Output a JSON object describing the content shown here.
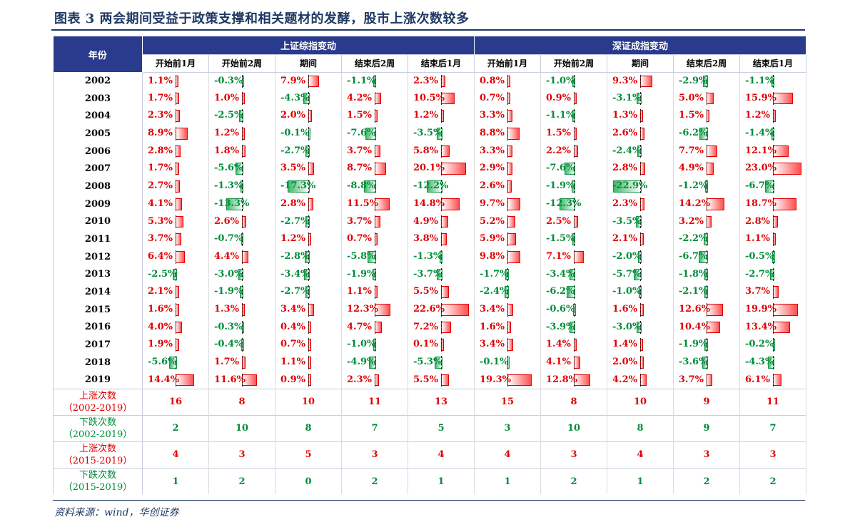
{
  "title": "图表 3   两会期间受益于政策支撑和相关题材的发酵，股市上涨次数较多",
  "header": {
    "year_label": "年份",
    "group1": "上证综指变动",
    "group2": "深证成指变动",
    "columns": [
      "开始前1月",
      "开始前2周",
      "期间",
      "结束后2周",
      "结束后1月",
      "开始前1月",
      "开始前2周",
      "期间",
      "结束后2周",
      "结束后1月"
    ]
  },
  "colors": {
    "up": "#e00000",
    "down": "#008c3a",
    "header_bg": "#2a3b8e"
  },
  "rows": [
    {
      "year": "2002",
      "values": [
        "1.1%",
        "-0.3%",
        "7.9%",
        "-1.1%",
        "2.3%",
        "0.8%",
        "-1.0%",
        "9.3%",
        "-2.9%",
        "-1.1%"
      ]
    },
    {
      "year": "2003",
      "values": [
        "1.7%",
        "1.0%",
        "-4.3%",
        "4.2%",
        "10.5%",
        "0.7%",
        "0.9%",
        "-3.1%",
        "5.0%",
        "15.9%"
      ]
    },
    {
      "year": "2004",
      "values": [
        "2.3%",
        "-2.5%",
        "2.0%",
        "1.5%",
        "1.2%",
        "3.3%",
        "-1.1%",
        "1.3%",
        "1.5%",
        "1.2%"
      ]
    },
    {
      "year": "2005",
      "values": [
        "8.9%",
        "1.2%",
        "-0.1%",
        "-7.6%",
        "-3.5%",
        "8.8%",
        "1.5%",
        "2.6%",
        "-6.2%",
        "-1.4%"
      ]
    },
    {
      "year": "2006",
      "values": [
        "2.8%",
        "1.8%",
        "-2.7%",
        "3.7%",
        "5.8%",
        "3.3%",
        "2.2%",
        "-2.4%",
        "7.7%",
        "12.1%"
      ]
    },
    {
      "year": "2007",
      "values": [
        "1.7%",
        "-5.6%",
        "3.5%",
        "8.7%",
        "20.1%",
        "2.9%",
        "-7.6%",
        "2.8%",
        "4.9%",
        "23.0%"
      ]
    },
    {
      "year": "2008",
      "values": [
        "2.7%",
        "-1.3%",
        "-17.3%",
        "-8.8%",
        "-12.2%",
        "2.6%",
        "-1.9%",
        "-22.9%",
        "-1.2%",
        "-6.7%"
      ]
    },
    {
      "year": "2009",
      "values": [
        "4.1%",
        "-13.3%",
        "2.8%",
        "11.5%",
        "14.8%",
        "9.7%",
        "-12.3%",
        "2.3%",
        "14.2%",
        "18.7%"
      ]
    },
    {
      "year": "2010",
      "values": [
        "5.3%",
        "2.6%",
        "-2.7%",
        "3.7%",
        "4.9%",
        "5.2%",
        "2.5%",
        "-3.5%",
        "3.2%",
        "2.8%"
      ]
    },
    {
      "year": "2011",
      "values": [
        "3.7%",
        "-0.7%",
        "1.2%",
        "0.7%",
        "3.8%",
        "5.9%",
        "-1.5%",
        "2.1%",
        "-2.2%",
        "1.1%"
      ]
    },
    {
      "year": "2012",
      "values": [
        "6.4%",
        "4.4%",
        "-2.8%",
        "-5.8%",
        "-1.3%",
        "9.8%",
        "7.1%",
        "-2.0%",
        "-6.7%",
        "-0.5%"
      ]
    },
    {
      "year": "2013",
      "values": [
        "-2.5%",
        "-3.0%",
        "-3.4%",
        "-1.9%",
        "-3.7%",
        "-1.7%",
        "-3.4%",
        "-5.7%",
        "-1.8%",
        "-2.7%"
      ]
    },
    {
      "year": "2014",
      "values": [
        "2.1%",
        "-1.9%",
        "-2.7%",
        "1.1%",
        "5.5%",
        "-2.4%",
        "-6.2%",
        "-1.0%",
        "-2.1%",
        "3.7%"
      ]
    },
    {
      "year": "2015",
      "values": [
        "1.6%",
        "1.3%",
        "3.4%",
        "12.3%",
        "22.6%",
        "3.4%",
        "-0.6%",
        "1.6%",
        "12.6%",
        "19.9%"
      ]
    },
    {
      "year": "2016",
      "values": [
        "4.0%",
        "-0.3%",
        "0.4%",
        "4.7%",
        "7.2%",
        "1.6%",
        "-3.9%",
        "-3.0%",
        "10.4%",
        "13.4%"
      ]
    },
    {
      "year": "2017",
      "values": [
        "1.9%",
        "-0.4%",
        "0.7%",
        "-1.0%",
        "0.1%",
        "3.4%",
        "1.4%",
        "1.4%",
        "-1.9%",
        "-0.2%"
      ]
    },
    {
      "year": "2018",
      "values": [
        "-5.6%",
        "1.7%",
        "1.1%",
        "-4.9%",
        "-5.3%",
        "-0.1%",
        "4.1%",
        "2.0%",
        "-3.6%",
        "-4.3%"
      ]
    },
    {
      "year": "2019",
      "values": [
        "14.4%",
        "11.6%",
        "0.9%",
        "2.3%",
        "5.5%",
        "19.3%",
        "12.8%",
        "4.2%",
        "3.7%",
        "6.1%"
      ]
    }
  ],
  "summary": [
    {
      "label1": "上涨次数",
      "label2": "（2002-2019）",
      "kind": "up",
      "values": [
        "16",
        "8",
        "10",
        "11",
        "13",
        "15",
        "8",
        "10",
        "9",
        "11"
      ]
    },
    {
      "label1": "下跌次数",
      "label2": "（2002-2019）",
      "kind": "down",
      "values": [
        "2",
        "10",
        "8",
        "7",
        "5",
        "3",
        "10",
        "8",
        "9",
        "7"
      ]
    },
    {
      "label1": "上涨次数",
      "label2": "（2015-2019）",
      "kind": "up",
      "values": [
        "4",
        "3",
        "5",
        "3",
        "4",
        "4",
        "3",
        "4",
        "3",
        "3"
      ]
    },
    {
      "label1": "下跌次数",
      "label2": "（2015-2019）",
      "kind": "down",
      "values": [
        "1",
        "2",
        "0",
        "2",
        "1",
        "1",
        "2",
        "1",
        "2",
        "2"
      ]
    }
  ],
  "source": "资料来源：wind，华创证券"
}
